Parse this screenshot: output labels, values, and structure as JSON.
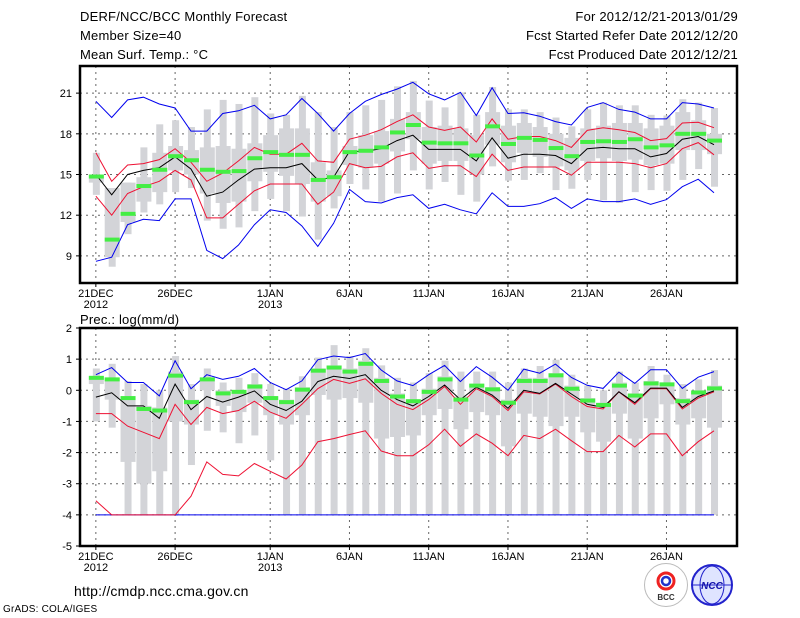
{
  "header": {
    "title": "DERF/NCC/BCC Monthly Forecast",
    "member_size": "Member Size=40",
    "variable": "Mean Surf. Temp.: °C",
    "period": "For 2012/12/21-2013/01/29",
    "start_date": "Fcst Started Refer Date 2012/12/20",
    "produced_date": "Fcst Produced Date 2012/12/21"
  },
  "footer": {
    "url": "http://cmdp.ncc.cma.gov.cn",
    "credit": "GrADS: COLA/IGES",
    "logo_bcc": "BCC",
    "logo_ncc": "NCC"
  },
  "colors": {
    "box": "#d3d4d8",
    "obs": "#44ee44",
    "mean": "#000000",
    "pct": "#ee1133",
    "ext": "#0000ee",
    "grid": "#666666"
  },
  "chart_data": [
    {
      "type": "line",
      "title": "Mean Surf. Temp.: °C",
      "ylabel": "°C",
      "ylim": [
        7,
        23
      ],
      "yticks": [
        9,
        12,
        15,
        18,
        21
      ],
      "x_ticks": [
        {
          "day": 0,
          "label": "21DEC",
          "sub": "2012"
        },
        {
          "day": 5,
          "label": "26DEC",
          "sub": ""
        },
        {
          "day": 11,
          "label": "1JAN",
          "sub": "2013"
        },
        {
          "day": 16,
          "label": "6JAN",
          "sub": ""
        },
        {
          "day": 21,
          "label": "11JAN",
          "sub": ""
        },
        {
          "day": 26,
          "label": "16JAN",
          "sub": ""
        },
        {
          "day": 31,
          "label": "21JAN",
          "sub": ""
        },
        {
          "day": 36,
          "label": "26JAN",
          "sub": ""
        }
      ],
      "grid": true,
      "days": 40,
      "whisker_lo": [
        13.5,
        8.2,
        10.6,
        12.2,
        12.8,
        13.7,
        14.0,
        11.6,
        11.0,
        11.1,
        12.3,
        13.2,
        12.3,
        11.9,
        10.2,
        12.5,
        14.3,
        13.9,
        13.0,
        13.6,
        15.3,
        13.9,
        14.45,
        13.5,
        13.0,
        15.6,
        14.55,
        14.6,
        15.1,
        13.85,
        13.95,
        14.6,
        13.1,
        12.9,
        13.7,
        13.85,
        13.8,
        14.6,
        15.4,
        14.1
      ],
      "whisker_hi": [
        16.6,
        14.0,
        14.4,
        17.0,
        18.7,
        19.0,
        18.5,
        19.8,
        20.5,
        20.2,
        20.7,
        19.5,
        19.4,
        20.8,
        19.6,
        18.5,
        19.6,
        20.1,
        20.5,
        21.5,
        21.9,
        20.45,
        19.95,
        21.05,
        19.4,
        21.45,
        19.8,
        19.8,
        19.6,
        19.2,
        18.55,
        19.8,
        20.3,
        20.1,
        20.1,
        19.4,
        19.35,
        20.55,
        20.3,
        19.9
      ],
      "box_lo": [
        14.4,
        8.9,
        11.5,
        13.0,
        13.7,
        15.3,
        15.0,
        13.6,
        12.9,
        13.0,
        14.5,
        15.2,
        14.9,
        14.3,
        13.0,
        13.4,
        15.7,
        15.5,
        15.8,
        16.7,
        17.6,
        15.8,
        16.0,
        16.0,
        15.0,
        17.2,
        15.9,
        16.6,
        16.3,
        15.6,
        15.3,
        16.0,
        16.2,
        16.0,
        16.1,
        15.7,
        15.8,
        16.8,
        16.8,
        16.5
      ],
      "box_hi": [
        15.0,
        14.0,
        14.4,
        14.8,
        16.6,
        17.1,
        16.8,
        17.0,
        17.1,
        16.9,
        17.3,
        17.9,
        18.4,
        18.4,
        15.9,
        15.3,
        17.1,
        17.9,
        18.2,
        19.1,
        19.6,
        18.5,
        18.6,
        18.4,
        17.9,
        19.6,
        18.6,
        18.8,
        18.5,
        18.0,
        17.7,
        18.4,
        18.6,
        18.8,
        18.8,
        18.4,
        18.6,
        19.6,
        19.0,
        18.0
      ],
      "series": [
        {
          "name": "obs",
          "kind": "marker",
          "values": [
            14.85,
            10.2,
            12.1,
            14.15,
            15.35,
            16.35,
            16.05,
            15.35,
            15.2,
            15.25,
            16.2,
            16.65,
            16.45,
            16.45,
            14.6,
            14.8,
            16.65,
            16.75,
            17.0,
            18.1,
            18.65,
            17.35,
            17.3,
            17.3,
            16.4,
            18.55,
            17.25,
            17.7,
            17.55,
            16.95,
            16.35,
            17.4,
            17.45,
            17.4,
            17.6,
            17.0,
            17.15,
            18.0,
            18.0,
            17.5
          ]
        },
        {
          "name": "ensemble-max",
          "kind": "ext",
          "values": [
            20.4,
            19.2,
            20.5,
            20.7,
            20.2,
            19.9,
            18.2,
            18.2,
            19.5,
            19.7,
            20.1,
            19.1,
            19.4,
            20.6,
            19.5,
            18.2,
            19.5,
            20.4,
            20.9,
            21.3,
            21.8,
            20.95,
            20.5,
            21.05,
            19.35,
            21.4,
            19.5,
            19.55,
            19.3,
            18.9,
            18.65,
            19.95,
            20.3,
            19.8,
            19.6,
            19.1,
            19.1,
            20.3,
            20.2,
            19.9
          ]
        },
        {
          "name": "ensemble-min",
          "kind": "ext",
          "values": [
            8.6,
            8.9,
            11.3,
            11.7,
            11.6,
            13.2,
            13.2,
            9.4,
            8.8,
            9.8,
            11.3,
            12.4,
            12.2,
            11.2,
            9.7,
            11.4,
            13.9,
            13.0,
            12.9,
            13.3,
            13.5,
            12.5,
            12.8,
            12.4,
            12.1,
            13.65,
            12.65,
            12.65,
            12.85,
            13.3,
            12.5,
            13.2,
            13.0,
            13.0,
            13.2,
            12.8,
            13.15,
            14.1,
            14.65,
            13.65
          ]
        },
        {
          "name": "upper-percentile",
          "kind": "pct",
          "values": [
            16.6,
            14.5,
            15.7,
            15.8,
            16.1,
            16.9,
            15.9,
            14.5,
            15.1,
            16.0,
            17.0,
            16.5,
            16.5,
            17.3,
            16.0,
            15.9,
            17.6,
            17.9,
            18.3,
            18.9,
            19.4,
            18.5,
            18.25,
            18.5,
            17.4,
            19.1,
            17.6,
            17.8,
            17.8,
            17.5,
            17.0,
            18.25,
            18.45,
            18.3,
            18.1,
            17.5,
            17.65,
            18.8,
            18.85,
            18.45
          ]
        },
        {
          "name": "lower-percentile",
          "kind": "pct",
          "values": [
            13.4,
            12.0,
            13.6,
            14.1,
            14.5,
            15.3,
            14.6,
            11.8,
            11.8,
            12.8,
            13.8,
            14.3,
            14.3,
            14.3,
            12.8,
            13.7,
            15.8,
            15.5,
            15.6,
            16.3,
            16.6,
            15.45,
            15.65,
            15.65,
            14.85,
            16.5,
            15.3,
            15.55,
            15.55,
            15.55,
            14.95,
            15.9,
            15.9,
            15.9,
            15.8,
            15.5,
            15.8,
            16.9,
            17.35,
            16.45
          ]
        },
        {
          "name": "ensemble-mean",
          "kind": "mean",
          "values": [
            15.0,
            13.5,
            15.0,
            15.3,
            15.5,
            16.3,
            15.4,
            13.4,
            13.7,
            14.6,
            15.4,
            15.5,
            15.5,
            15.8,
            14.6,
            14.8,
            16.7,
            16.7,
            16.9,
            17.5,
            17.9,
            16.85,
            16.85,
            16.85,
            16.0,
            17.7,
            16.2,
            16.5,
            16.5,
            16.4,
            15.8,
            16.9,
            17.0,
            16.9,
            16.9,
            16.3,
            16.55,
            17.6,
            17.8,
            17.2
          ]
        }
      ]
    },
    {
      "type": "line",
      "title": "Prec.: log(mm/d)",
      "ylabel": "log(mm/d)",
      "ylim": [
        -5,
        2
      ],
      "yticks": [
        2,
        1,
        0,
        -1,
        -2,
        -3,
        -4,
        -5
      ],
      "x_ticks": [
        {
          "day": 0,
          "label": "21DEC",
          "sub": "2012"
        },
        {
          "day": 5,
          "label": "26DEC",
          "sub": ""
        },
        {
          "day": 11,
          "label": "1JAN",
          "sub": "2013"
        },
        {
          "day": 16,
          "label": "6JAN",
          "sub": ""
        },
        {
          "day": 21,
          "label": "11JAN",
          "sub": ""
        },
        {
          "day": 26,
          "label": "16JAN",
          "sub": ""
        },
        {
          "day": 31,
          "label": "21JAN",
          "sub": ""
        },
        {
          "day": 36,
          "label": "26JAN",
          "sub": ""
        }
      ],
      "grid": true,
      "days": 40,
      "whisker_lo": [
        -1.0,
        -1.2,
        -4,
        -4,
        -4,
        -4,
        -2.4,
        -1.3,
        -1.35,
        -1.7,
        -1.45,
        -2.25,
        -4,
        -4,
        -4,
        -4,
        -4,
        -4,
        -4,
        -4,
        -4,
        -4,
        -4,
        -4,
        -4,
        -4,
        -4,
        -4,
        -4,
        -4,
        -4,
        -4,
        -4,
        -4,
        -4,
        -4,
        -4,
        -4,
        -4,
        -4
      ],
      "whisker_hi": [
        0.7,
        0.85,
        0.3,
        0.2,
        0.0,
        1.1,
        0.2,
        0.7,
        0.25,
        0.4,
        0.55,
        0.2,
        0.05,
        0.45,
        1.05,
        1.45,
        1.1,
        1.35,
        0.8,
        0.4,
        0.25,
        0.55,
        0.95,
        0.6,
        0.6,
        0.6,
        0.25,
        0.7,
        0.78,
        0.98,
        0.5,
        0.15,
        0.0,
        0.6,
        0.25,
        0.78,
        0.5,
        0.2,
        0.35,
        0.65
      ],
      "box_lo": [
        0.2,
        -0.3,
        -2.3,
        -3.0,
        -2.6,
        -1.0,
        -1.1,
        0.0,
        -0.5,
        -0.7,
        -0.4,
        -0.8,
        -1.1,
        -0.8,
        -0.15,
        -0.3,
        -0.25,
        -0.4,
        -1.55,
        -1.5,
        -1.45,
        -0.8,
        -0.6,
        -1.25,
        -0.7,
        -0.8,
        -1.8,
        -0.75,
        -0.85,
        -1.15,
        -0.85,
        -1.35,
        -1.65,
        -0.75,
        -1.55,
        -0.9,
        -0.45,
        -1.1,
        -0.9,
        -1.2
      ],
      "box_hi": [
        0.45,
        0.4,
        -0.2,
        -0.5,
        -0.55,
        0.6,
        -0.3,
        0.4,
        0.0,
        0.0,
        0.2,
        -0.2,
        -0.3,
        0.1,
        0.7,
        0.8,
        0.7,
        0.95,
        0.4,
        -0.1,
        -0.3,
        0.05,
        0.45,
        -0.2,
        0.2,
        0.1,
        -0.3,
        0.4,
        0.4,
        0.55,
        0.15,
        -0.25,
        -0.4,
        0.25,
        -0.1,
        0.3,
        0.25,
        -0.25,
        0.0,
        0.15
      ],
      "series": [
        {
          "name": "obs",
          "kind": "marker",
          "values": [
            0.4,
            0.35,
            -0.25,
            -0.6,
            -0.65,
            0.47,
            -0.38,
            0.35,
            -0.1,
            -0.05,
            0.12,
            -0.25,
            -0.38,
            0.02,
            0.63,
            0.73,
            0.6,
            0.85,
            0.3,
            -0.2,
            -0.35,
            -0.05,
            0.35,
            -0.3,
            0.15,
            0.03,
            -0.4,
            0.3,
            0.3,
            0.48,
            0.05,
            -0.33,
            -0.47,
            0.15,
            -0.17,
            0.22,
            0.19,
            -0.35,
            -0.07,
            0.06
          ]
        },
        {
          "name": "ensemble-max",
          "kind": "ext",
          "values": [
            0.5,
            0.73,
            0.25,
            0.25,
            -0.18,
            0.95,
            0.05,
            0.5,
            0.35,
            0.45,
            0.7,
            0.25,
            0.02,
            0.3,
            0.98,
            1.1,
            1.05,
            1.18,
            0.65,
            0.3,
            0.15,
            0.5,
            0.8,
            0.28,
            0.76,
            0.42,
            0.0,
            0.68,
            0.55,
            0.84,
            0.41,
            0.16,
            0.06,
            0.58,
            0.22,
            0.66,
            0.66,
            0.06,
            0.42,
            0.6
          ]
        },
        {
          "name": "ensemble-min",
          "kind": "ext",
          "values": [
            -4,
            -4,
            -4,
            -4,
            -4,
            -4,
            -4,
            -4,
            -4,
            -4,
            -4,
            -4,
            -4,
            -4,
            -4,
            -4,
            -4,
            -4,
            -4,
            -4,
            -4,
            -4,
            -4,
            -4,
            -4,
            -4,
            -4,
            -4,
            -4,
            -4,
            -4,
            -4,
            -4,
            -4,
            -4,
            -4,
            -4,
            -4,
            -4,
            -4
          ]
        },
        {
          "name": "upper-percentile",
          "kind": "pct",
          "values": [
            -0.75,
            -0.75,
            -1.15,
            -1.35,
            -1.55,
            -0.45,
            -1.1,
            -0.55,
            -0.75,
            -0.65,
            -0.35,
            -0.7,
            -0.9,
            -0.45,
            0.05,
            0.35,
            0.22,
            0.37,
            -0.1,
            -0.45,
            -0.62,
            -0.3,
            0.12,
            -0.45,
            0.05,
            -0.2,
            -0.65,
            -0.05,
            -0.12,
            0.2,
            -0.2,
            -0.52,
            -0.6,
            -0.05,
            -0.45,
            0.05,
            0.05,
            -0.6,
            -0.25,
            -0.05
          ]
        },
        {
          "name": "lower-percentile",
          "kind": "pct",
          "values": [
            -3.55,
            -4,
            -4,
            -4,
            -4,
            -4,
            -3.4,
            -2.3,
            -2.7,
            -2.75,
            -2.35,
            -2.6,
            -2.85,
            -2.4,
            -1.65,
            -1.55,
            -1.42,
            -1.3,
            -1.95,
            -2.1,
            -2.1,
            -1.75,
            -1.25,
            -1.8,
            -1.4,
            -1.7,
            -2.1,
            -1.45,
            -1.55,
            -1.25,
            -1.62,
            -1.97,
            -1.97,
            -1.45,
            -1.82,
            -1.4,
            -1.4,
            -2.1,
            -1.65,
            -1.3
          ]
        },
        {
          "name": "ensemble-mean",
          "kind": "mean",
          "values": [
            -0.22,
            -0.08,
            -0.5,
            -0.5,
            -0.9,
            0.2,
            -0.62,
            -0.2,
            -0.38,
            -0.22,
            -0.02,
            -0.45,
            -0.65,
            -0.35,
            0.28,
            0.45,
            0.38,
            0.5,
            0.0,
            -0.3,
            -0.5,
            -0.2,
            0.17,
            -0.3,
            0.1,
            -0.15,
            -0.58,
            0.0,
            -0.1,
            0.22,
            -0.12,
            -0.45,
            -0.55,
            -0.05,
            -0.4,
            0.07,
            0.07,
            -0.55,
            -0.2,
            -0.02
          ]
        }
      ]
    }
  ]
}
